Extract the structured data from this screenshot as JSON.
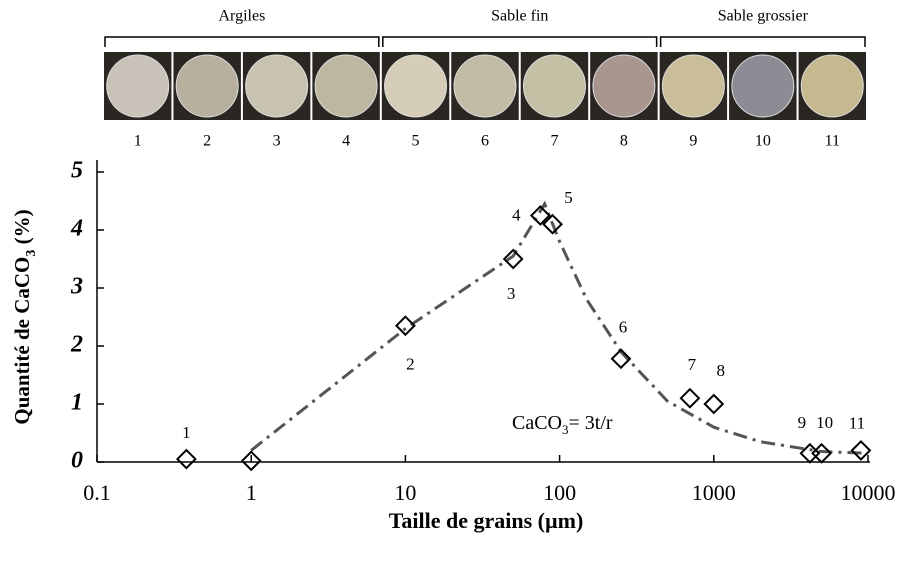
{
  "chart_data": {
    "type": "scatter",
    "groups": [
      "Argiles",
      "Sable fin",
      "Sable grossier"
    ],
    "samples": [
      "1",
      "2",
      "3",
      "4",
      "5",
      "6",
      "7",
      "8",
      "9",
      "10",
      "11"
    ],
    "xlabel": "Taille de grains (µm)",
    "ylabel": {
      "before": "Quantité de CaCO",
      "sub": "3",
      "after": " (%)"
    },
    "annotation": {
      "before": "CaCO",
      "sub": "3",
      "after": "= 3t/r"
    },
    "log_x": true,
    "xlim": [
      0.1,
      10000
    ],
    "xticks": [
      0.1,
      1,
      10,
      100,
      1000,
      10000
    ],
    "ylim": [
      0,
      5
    ],
    "yticks": [
      0,
      1,
      2,
      3,
      4,
      5
    ],
    "series": [
      {
        "marker": "diamond",
        "color": "#000000",
        "x": [
          0.38,
          1,
          10,
          50,
          75,
          90,
          250,
          700,
          1000,
          4200,
          5000,
          9000
        ],
        "values": [
          0.05,
          0.02,
          2.35,
          3.5,
          4.25,
          4.1,
          1.78,
          1.1,
          1.0,
          0.15,
          0.15,
          0.2
        ],
        "point_labels": [
          "1",
          null,
          "2",
          "3",
          "4",
          "5",
          "6",
          "7",
          "8",
          "9",
          "10",
          "11"
        ]
      }
    ],
    "trend": {
      "style": "dash-dot",
      "color": "#555555",
      "x": [
        1,
        10,
        50,
        80,
        100,
        150,
        250,
        500,
        1000,
        2000,
        5000,
        10000
      ],
      "values": [
        0.2,
        2.3,
        3.55,
        4.45,
        3.8,
        2.8,
        1.9,
        1.05,
        0.6,
        0.35,
        0.18,
        0.15
      ]
    }
  }
}
